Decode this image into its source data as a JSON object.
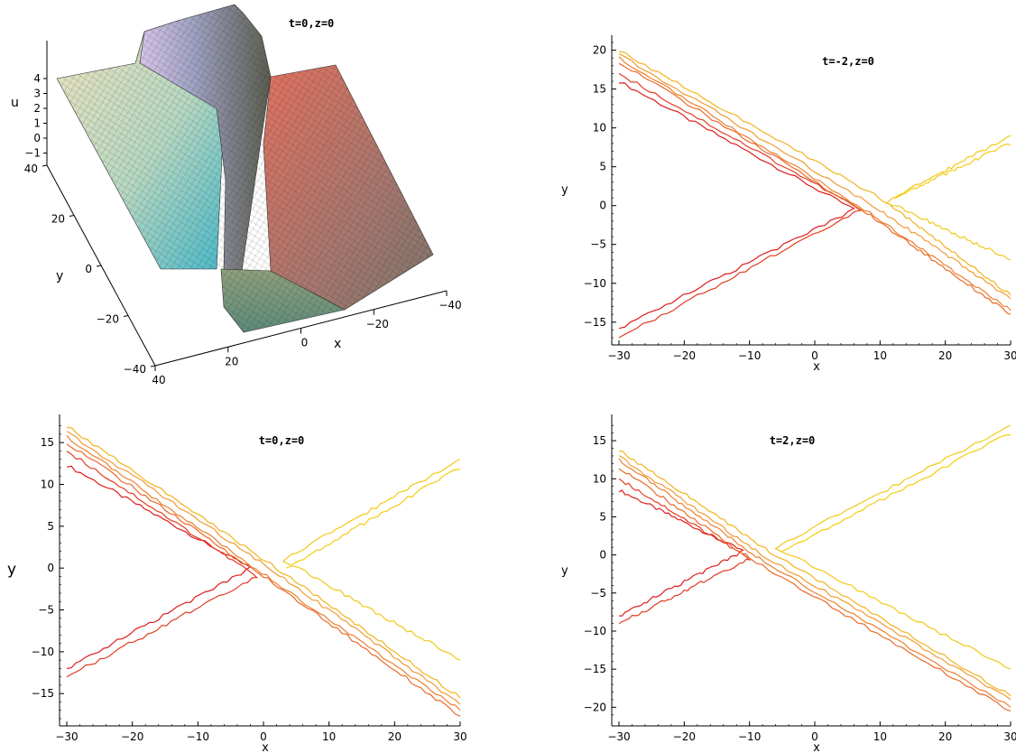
{
  "chart_data": [
    {
      "type": "surface",
      "title": "t=0,z=0",
      "xlabel": "x",
      "ylabel": "y",
      "zlabel": "u",
      "x_ticks": [
        -40,
        -20,
        0,
        20,
        40
      ],
      "y_ticks": [
        -40,
        -20,
        0,
        20,
        40
      ],
      "z_ticks": [
        -1,
        0,
        1,
        2,
        3,
        4
      ],
      "xlim": [
        -40,
        40
      ],
      "ylim": [
        -40,
        40
      ],
      "zlim": [
        -1,
        4.5
      ],
      "grid": "mesh"
    },
    {
      "type": "contour",
      "title": "t=-2,z=0",
      "xlabel": "x",
      "ylabel": "y",
      "xlim": [
        -30,
        30
      ],
      "ylim": [
        -17,
        21
      ],
      "x_ticks": [
        -30,
        -20,
        -10,
        0,
        10,
        20,
        30
      ],
      "y_ticks": [
        -15,
        -10,
        -5,
        0,
        5,
        10,
        15,
        20
      ],
      "lines": [
        {
          "color": "#dd1c1c",
          "points": [
            [
              -30,
              16
            ],
            [
              6,
              -0.5
            ],
            [
              -30,
              -15.8
            ]
          ]
        },
        {
          "color": "#e23c21",
          "points": [
            [
              -30,
              17
            ],
            [
              7,
              -0.5
            ],
            [
              -30,
              -17
            ]
          ]
        },
        {
          "color": "#e86a2a",
          "points": [
            [
              -30,
              18.5
            ],
            [
              8,
              -1
            ],
            [
              30,
              -14
            ]
          ]
        },
        {
          "color": "#ec8030",
          "points": [
            [
              -30,
              19
            ],
            [
              8.5,
              -1
            ],
            [
              30,
              -13.5
            ]
          ]
        },
        {
          "color": "#f09a32",
          "points": [
            [
              -30,
              19.5
            ],
            [
              9,
              0
            ],
            [
              30,
              -12
            ]
          ]
        },
        {
          "color": "#f2b31c",
          "points": [
            [
              -30,
              20
            ],
            [
              10,
              1
            ],
            [
              30,
              -11.5
            ]
          ]
        },
        {
          "color": "#f2c816",
          "points": [
            [
              30,
              9
            ],
            [
              11,
              0.5
            ],
            [
              30,
              -7
            ]
          ]
        },
        {
          "color": "#f4cc10",
          "points": [
            [
              30,
              8
            ],
            [
              12,
              1
            ]
          ]
        }
      ]
    },
    {
      "type": "contour",
      "title": "t=0,z=0",
      "xlabel": "x",
      "ylabel": "y",
      "xlim": [
        -30,
        30
      ],
      "ylim": [
        -18,
        17.5
      ],
      "x_ticks": [
        -30,
        -20,
        -10,
        0,
        10,
        20,
        30
      ],
      "y_ticks": [
        -15,
        -10,
        -5,
        0,
        5,
        10,
        15
      ],
      "lines": [
        {
          "color": "#dd1c1c",
          "points": [
            [
              -30,
              12.3
            ],
            [
              -2,
              0
            ],
            [
              -30,
              -12
            ]
          ]
        },
        {
          "color": "#e23c21",
          "points": [
            [
              -30,
              14
            ],
            [
              -1,
              -1
            ],
            [
              -30,
              -13
            ]
          ]
        },
        {
          "color": "#e86a2a",
          "points": [
            [
              -30,
              15
            ],
            [
              0,
              -1
            ],
            [
              30,
              -17.7
            ]
          ]
        },
        {
          "color": "#ec8030",
          "points": [
            [
              -30,
              15.7
            ],
            [
              0.5,
              -1
            ],
            [
              30,
              -17
            ]
          ]
        },
        {
          "color": "#f09a32",
          "points": [
            [
              -30,
              16.3
            ],
            [
              1,
              0
            ],
            [
              30,
              -16.3
            ]
          ]
        },
        {
          "color": "#f2b31c",
          "points": [
            [
              -30,
              17
            ],
            [
              2,
              0
            ],
            [
              30,
              -15.5
            ]
          ]
        },
        {
          "color": "#f2c816",
          "points": [
            [
              30,
              13
            ],
            [
              3,
              1
            ],
            [
              30,
              -11
            ]
          ]
        },
        {
          "color": "#f4cc10",
          "points": [
            [
              30,
              12
            ],
            [
              3.5,
              0
            ]
          ]
        }
      ]
    },
    {
      "type": "contour",
      "title": "t=2,z=0",
      "xlabel": "x",
      "ylabel": "y",
      "xlim": [
        -30,
        30
      ],
      "ylim": [
        -21.5,
        17.5
      ],
      "x_ticks": [
        -30,
        -20,
        -10,
        0,
        10,
        20,
        30
      ],
      "y_ticks": [
        -20,
        -15,
        -10,
        -5,
        0,
        5,
        10,
        15
      ],
      "lines": [
        {
          "color": "#dd1c1c",
          "points": [
            [
              -30,
              8.5
            ],
            [
              -11,
              0.5
            ],
            [
              -30,
              -8
            ]
          ]
        },
        {
          "color": "#e23c21",
          "points": [
            [
              -30,
              10
            ],
            [
              -10,
              -0.5
            ],
            [
              -30,
              -9
            ]
          ]
        },
        {
          "color": "#e86a2a",
          "points": [
            [
              -30,
              11.5
            ],
            [
              -9,
              -1
            ],
            [
              30,
              -20.5
            ]
          ]
        },
        {
          "color": "#ec8030",
          "points": [
            [
              -30,
              12.5
            ],
            [
              -8.5,
              -0.5
            ],
            [
              30,
              -20
            ]
          ]
        },
        {
          "color": "#f09a32",
          "points": [
            [
              -30,
              13
            ],
            [
              -8,
              0
            ],
            [
              30,
              -19
            ]
          ]
        },
        {
          "color": "#f2b31c",
          "points": [
            [
              -30,
              13.8
            ],
            [
              -7,
              0.5
            ],
            [
              30,
              -18.5
            ]
          ]
        },
        {
          "color": "#f2c816",
          "points": [
            [
              30,
              17
            ],
            [
              -6,
              1
            ],
            [
              30,
              -15
            ]
          ]
        },
        {
          "color": "#f4cc10",
          "points": [
            [
              30,
              16
            ],
            [
              -5,
              0.5
            ]
          ]
        }
      ]
    }
  ]
}
